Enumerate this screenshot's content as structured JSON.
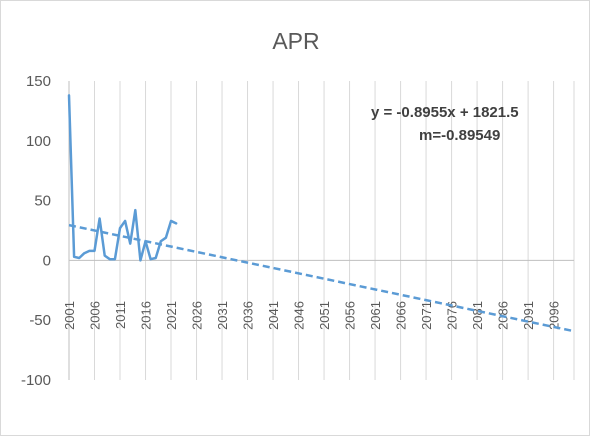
{
  "chart_data": {
    "type": "line",
    "title": "APR",
    "xlabel": "",
    "ylabel": "",
    "xlim": [
      2001,
      2100
    ],
    "ylim": [
      -100,
      150
    ],
    "y_ticks": [
      150,
      100,
      50,
      0,
      -50,
      -100
    ],
    "x_ticks": [
      "2001",
      "2006",
      "2011",
      "2016",
      "2021",
      "2026",
      "2031",
      "2036",
      "2041",
      "2046",
      "2051",
      "2056",
      "2061",
      "2066",
      "2071",
      "2076",
      "2081",
      "2086",
      "2091",
      "2096"
    ],
    "grid": {
      "vertical": true,
      "horizontal": false
    },
    "series": [
      {
        "color": "#5b9bd5",
        "style": "solid",
        "x": [
          2001,
          2002,
          2003,
          2004,
          2005,
          2006,
          2007,
          2008,
          2009,
          2010,
          2011,
          2012,
          2013,
          2014,
          2015,
          2016,
          2017,
          2018,
          2019,
          2020,
          2021,
          2022
        ],
        "values": [
          138,
          3,
          2,
          6,
          8,
          8,
          35,
          4,
          1,
          1,
          27,
          33,
          14,
          42,
          0,
          16,
          1,
          2,
          16,
          19,
          33,
          31
        ]
      }
    ],
    "trendline": {
      "color": "#5b9bd5",
      "style": "dashed",
      "slope": -0.8955,
      "intercept": 1821.5,
      "x_range": [
        2001,
        2100
      ],
      "y_values": [
        29.5,
        -59.2
      ]
    },
    "annotations": {
      "equation": "y = -0.8955x + 1821.5",
      "slope_text": "m=-0.89549"
    }
  }
}
